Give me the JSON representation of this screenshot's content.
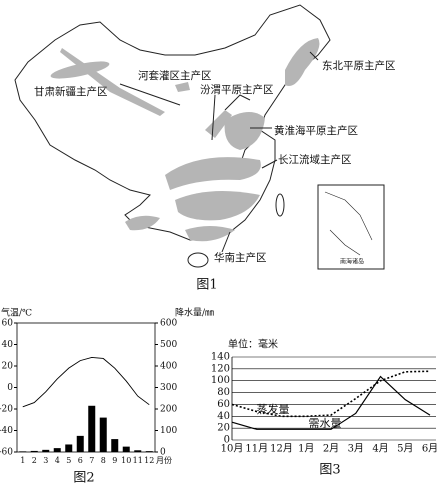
{
  "map": {
    "labels": [
      "甘肃新疆主产区",
      "河套灌区主产区",
      "汾渭平原主产区",
      "东北平原主产区",
      "黄淮海平原主产区",
      "长江流域主产区",
      "华南主产区"
    ],
    "inset_label": "南海诸岛",
    "caption": "图1"
  },
  "chart_data": [
    {
      "type": "climate",
      "caption": "图2",
      "y_label": "气温/℃",
      "y2_label": "降水量/㎜",
      "x_label": "月份",
      "categories": [
        "1",
        "2",
        "3",
        "4",
        "5",
        "6",
        "7",
        "8",
        "9",
        "10",
        "11",
        "12"
      ],
      "series": [
        {
          "mark": "line",
          "color": "#000000",
          "values": [
            -18,
            -14,
            -4,
            8,
            18,
            25,
            28,
            27,
            18,
            6,
            -8,
            -16
          ]
        },
        {
          "mark": "bar",
          "axis": "y2",
          "color": "#000000",
          "values": [
            3,
            5,
            10,
            18,
            35,
            75,
            215,
            160,
            60,
            25,
            8,
            4
          ]
        }
      ],
      "ylim": [
        -60,
        60
      ],
      "yticks": [
        60,
        40,
        20,
        0,
        -20,
        -40,
        -60
      ],
      "y2lim": [
        0,
        600
      ],
      "y2ticks": [
        600,
        500,
        400,
        300,
        200,
        100,
        0
      ]
    },
    {
      "type": "line",
      "caption": "图3",
      "unit_label": "单位：毫米",
      "categories": [
        "10月",
        "11月",
        "12月",
        "1月",
        "2月",
        "3月",
        "4月",
        "5月",
        "6月"
      ],
      "series": [
        {
          "name": "蒸发量",
          "color": "#000000",
          "dashed": true,
          "values": [
            60,
            48,
            40,
            40,
            42,
            70,
            100,
            115,
            116
          ]
        },
        {
          "name": "需水量",
          "color": "#000000",
          "dashed": false,
          "values": [
            30,
            18,
            18,
            18,
            18,
            45,
            107,
            68,
            42
          ]
        }
      ],
      "ylim": [
        0,
        140
      ],
      "yticks": [
        0,
        20,
        40,
        60,
        80,
        100,
        120,
        140
      ],
      "grid": true
    }
  ]
}
